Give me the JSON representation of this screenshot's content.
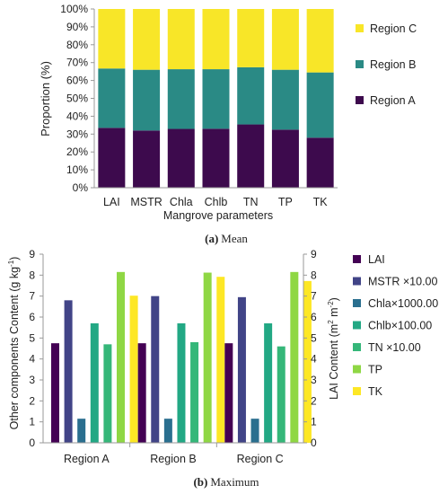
{
  "chart_data": [
    {
      "type": "bar",
      "stacked": true,
      "title": "",
      "caption_label": "(a)",
      "caption_text": "Mean",
      "xlabel": "Mangrove parameters",
      "ylabel": "Proportion (%)",
      "ylim": [
        0,
        100
      ],
      "yticks": [
        "0%",
        "10%",
        "20%",
        "30%",
        "40%",
        "50%",
        "60%",
        "70%",
        "80%",
        "90%",
        "100%"
      ],
      "grid": false,
      "legend_position": "right",
      "categories": [
        "LAI",
        "MSTR",
        "Chla",
        "Chlb",
        "TN",
        "TP",
        "TK"
      ],
      "series": [
        {
          "name": "Region A",
          "color": "#3d0a4d",
          "values": [
            33.5,
            32,
            32.9,
            33,
            35.4,
            32.5,
            28
          ]
        },
        {
          "name": "Region B",
          "color": "#2a8a85",
          "values": [
            33.2,
            34,
            33.4,
            33.3,
            32,
            33.5,
            36.5
          ]
        },
        {
          "name": "Region C",
          "color": "#f8e628",
          "values": [
            33.3,
            34,
            33.7,
            33.7,
            32.6,
            34,
            35.5
          ]
        }
      ]
    },
    {
      "type": "bar",
      "stacked": false,
      "title": "",
      "caption_label": "(b)",
      "caption_text": "Maximum",
      "xlabel": "",
      "ylabel": "Other components Content (g kg",
      "ylabel_sup": "-1",
      "ylabel_end": ")",
      "y2label": "LAI Content (m",
      "y2label_sup1": "2",
      "y2label_mid": " m",
      "y2label_sup2": "-2",
      "y2label_end": ")",
      "ylim": [
        0,
        9
      ],
      "y2lim": [
        0,
        9
      ],
      "yticks": [
        "0",
        "1",
        "2",
        "3",
        "4",
        "5",
        "6",
        "7",
        "8",
        "9"
      ],
      "grid": false,
      "legend_position": "right",
      "categories": [
        "Region A",
        "Region B",
        "Region C"
      ],
      "series": [
        {
          "name": "LAI",
          "color": "#440154",
          "values": [
            4.75,
            4.75,
            4.75
          ]
        },
        {
          "name": "MSTR ×10.00",
          "color": "#414487",
          "values": [
            6.8,
            7.0,
            6.95
          ]
        },
        {
          "name": "Chla×1000.00",
          "color": "#2a6f8f",
          "values": [
            1.15,
            1.15,
            1.15
          ]
        },
        {
          "name": "Chlb×100.00",
          "color": "#22a884",
          "values": [
            5.7,
            5.7,
            5.7
          ]
        },
        {
          "name": "TN  ×10.00",
          "color": "#35b779",
          "values": [
            4.7,
            4.8,
            4.6
          ]
        },
        {
          "name": "TP",
          "color": "#8fd744",
          "values": [
            8.15,
            8.12,
            8.15
          ]
        },
        {
          "name": "TK",
          "color": "#fde725",
          "values": [
            7.02,
            7.92,
            7.72
          ]
        }
      ]
    }
  ]
}
